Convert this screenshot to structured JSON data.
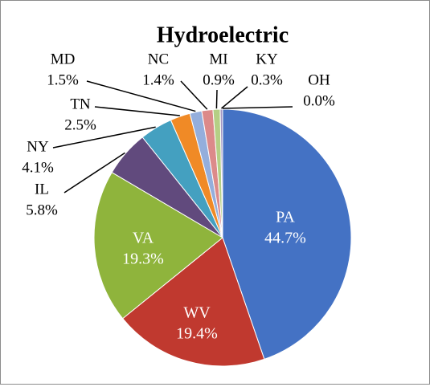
{
  "chart_data": {
    "type": "pie",
    "title": "Hydroelectric",
    "categories": [
      "PA",
      "WV",
      "VA",
      "IL",
      "NY",
      "TN",
      "MD",
      "NC",
      "MI",
      "KY",
      "OH"
    ],
    "values": [
      44.7,
      19.4,
      19.3,
      5.8,
      4.1,
      2.5,
      1.5,
      1.4,
      0.9,
      0.3,
      0.0
    ],
    "value_labels": [
      "44.7%",
      "19.4%",
      "19.3%",
      "5.8%",
      "4.1%",
      "2.5%",
      "1.5%",
      "1.4%",
      "0.9%",
      "0.3%",
      "0.0%"
    ],
    "colors": [
      "#4472c4",
      "#c0392f",
      "#8fb43c",
      "#614a7d",
      "#44a0c0",
      "#f08a26",
      "#94aedc",
      "#dc8a8a",
      "#b5cf85",
      "#a295c4",
      "#7fc3dc"
    ]
  }
}
